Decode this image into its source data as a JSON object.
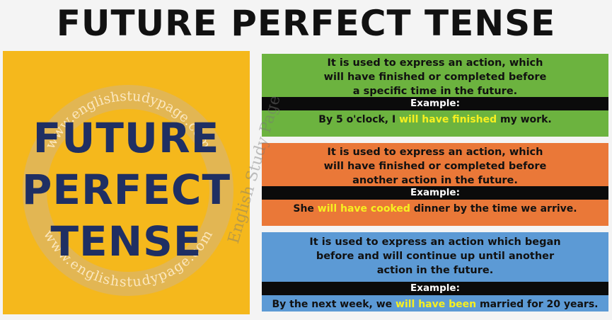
{
  "title": "FUTURE PERFECT TENSE",
  "left_panel": {
    "watermark_top": "www.englishstudypage.com",
    "watermark_bottom": "www.englishstudypage.com",
    "line1": "FUTURE",
    "line2": "PERFECT",
    "line3": "TENSE"
  },
  "side_watermark": "English Study Page",
  "cards": [
    {
      "color": "#6cb33f",
      "desc_lines": [
        "It is used to express an action, which",
        "will have finished or completed before",
        "a specific time in the future."
      ],
      "example_label": "Example:",
      "ex_before": "By 5 o'clock, I ",
      "ex_highlight": "will have finished",
      "ex_after": " my work."
    },
    {
      "color": "#ea7838",
      "desc_lines": [
        "It is used to express an action, which",
        "will have finished or completed before",
        "another action in the future."
      ],
      "example_label": "Example:",
      "ex_before": "She ",
      "ex_highlight": "will have cooked",
      "ex_after": " dinner by the time we arrive."
    },
    {
      "color": "#5c9ad5",
      "desc_lines": [
        "It is used to express an action which began",
        "before and will continue up until another",
        "action in the future."
      ],
      "example_label": "Example:",
      "ex_before": "By the next week, we ",
      "ex_highlight": "will have been",
      "ex_after": " married for 20 years."
    }
  ]
}
